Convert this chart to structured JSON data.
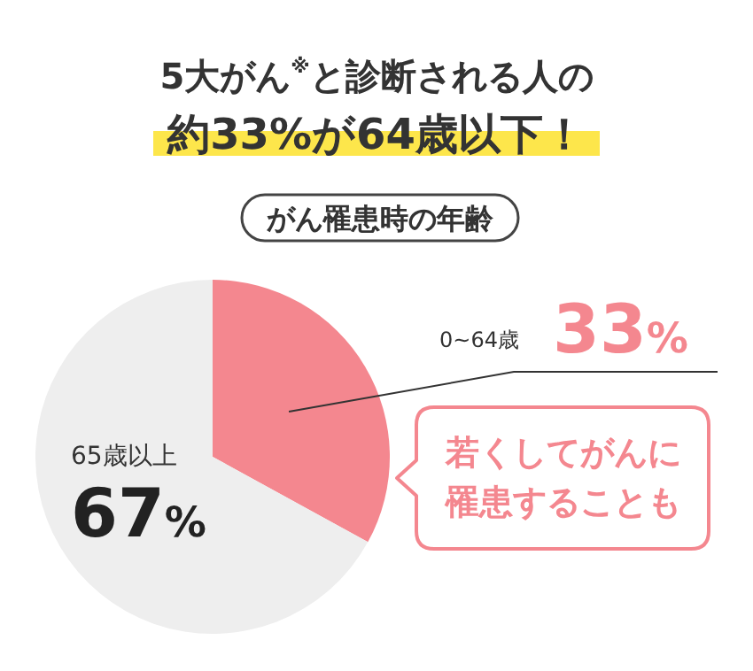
{
  "chart_data": {
    "type": "pie",
    "title": "5大がん$^{※}$と診断される人の",
    "subtitle": "約33%が64歳以下！",
    "annotations": [
      "がん罹患時の年齢",
      "若くしてがんに罹患することも"
    ],
    "categories": [
      "0~64歳",
      "65歳以上"
    ],
    "values": [
      33,
      67
    ],
    "colors": [
      "#f4878f",
      "#eeeeee"
    ],
    "value_labels": [
      "33%",
      "67%"
    ]
  }
}
